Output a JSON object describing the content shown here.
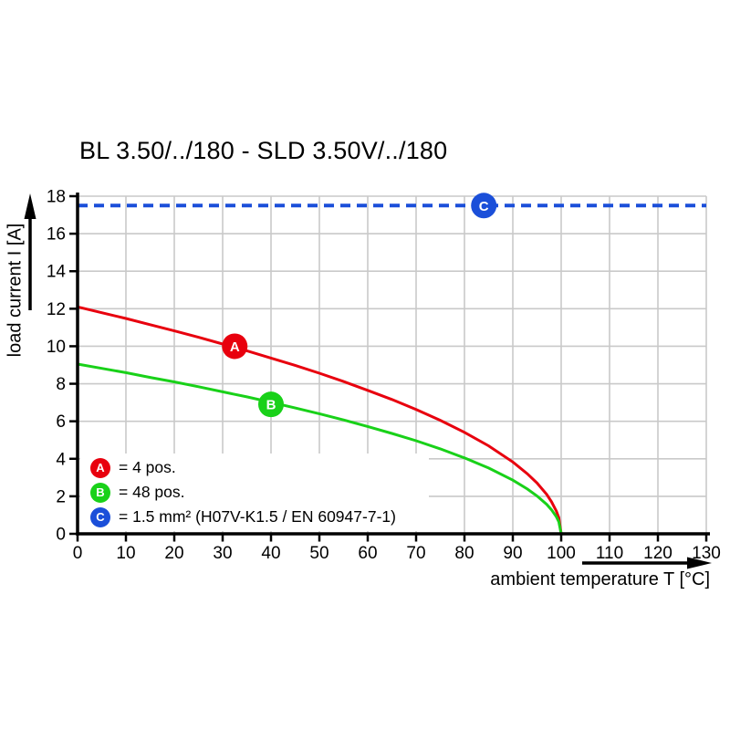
{
  "page": {
    "background": "#ffffff"
  },
  "chart_data": {
    "type": "line",
    "title": "BL 3.50/../180 - SLD 3.50V/../180",
    "xlabel": "ambient temperature T [°C]",
    "ylabel": "load current I [A]",
    "xlim": [
      0,
      130
    ],
    "ylim": [
      0,
      18
    ],
    "xticks": [
      0,
      10,
      20,
      30,
      40,
      50,
      60,
      70,
      80,
      90,
      100,
      110,
      120,
      130
    ],
    "yticks": [
      0,
      2,
      4,
      6,
      8,
      10,
      12,
      14,
      16,
      18
    ],
    "grid": true,
    "grid_color": "#c9c9c9",
    "axis_color": "#000000",
    "legend_position": "bottom-left-inside",
    "series": [
      {
        "id": "a",
        "marker_label": "A",
        "name": "4 pos.",
        "color": "#e8000e",
        "line_style": "solid",
        "marker": {
          "x": 32.5,
          "y": 10
        },
        "points": [
          [
            0,
            12.1
          ],
          [
            5,
            11.79
          ],
          [
            10,
            11.48
          ],
          [
            15,
            11.15
          ],
          [
            20,
            10.82
          ],
          [
            25,
            10.48
          ],
          [
            30,
            10.12
          ],
          [
            35,
            9.76
          ],
          [
            40,
            9.37
          ],
          [
            45,
            8.98
          ],
          [
            50,
            8.56
          ],
          [
            55,
            8.12
          ],
          [
            60,
            7.65
          ],
          [
            65,
            7.16
          ],
          [
            70,
            6.63
          ],
          [
            75,
            6.05
          ],
          [
            80,
            5.41
          ],
          [
            85,
            4.69
          ],
          [
            90,
            3.83
          ],
          [
            93,
            3.2
          ],
          [
            95,
            2.71
          ],
          [
            97,
            2.1
          ],
          [
            98,
            1.71
          ],
          [
            99,
            1.21
          ],
          [
            99.5,
            0.86
          ],
          [
            100,
            0
          ]
        ]
      },
      {
        "id": "b",
        "marker_label": "B",
        "name": "48 pos.",
        "color": "#19d119",
        "line_style": "solid",
        "marker": {
          "x": 40,
          "y": 6.9
        },
        "points": [
          [
            0,
            9.05
          ],
          [
            5,
            8.82
          ],
          [
            10,
            8.59
          ],
          [
            15,
            8.34
          ],
          [
            20,
            8.1
          ],
          [
            25,
            7.84
          ],
          [
            30,
            7.57
          ],
          [
            35,
            7.3
          ],
          [
            40,
            7.01
          ],
          [
            45,
            6.71
          ],
          [
            50,
            6.4
          ],
          [
            55,
            6.07
          ],
          [
            60,
            5.72
          ],
          [
            65,
            5.35
          ],
          [
            70,
            4.96
          ],
          [
            75,
            4.53
          ],
          [
            80,
            4.05
          ],
          [
            85,
            3.51
          ],
          [
            90,
            2.86
          ],
          [
            93,
            2.39
          ],
          [
            95,
            2.02
          ],
          [
            97,
            1.57
          ],
          [
            98,
            1.28
          ],
          [
            99,
            0.91
          ],
          [
            99.5,
            0.64
          ],
          [
            100,
            0
          ]
        ]
      },
      {
        "id": "c",
        "marker_label": "C",
        "name": "1.5 mm² (H07V-K1.5 / EN 60947-7-1)",
        "color": "#1b4fd9",
        "line_style": "dashed",
        "marker": {
          "x": 84,
          "y": 17.5
        },
        "points": [
          [
            0,
            17.5
          ],
          [
            130,
            17.5
          ]
        ]
      }
    ],
    "legend": [
      {
        "label": "A",
        "color": "#e8000e",
        "text": "= 4 pos."
      },
      {
        "label": "B",
        "color": "#19d119",
        "text": "= 48 pos."
      },
      {
        "label": "C",
        "color": "#1b4fd9",
        "text": "= 1.5 mm² (H07V-K1.5 / EN 60947-7-1)"
      }
    ]
  }
}
